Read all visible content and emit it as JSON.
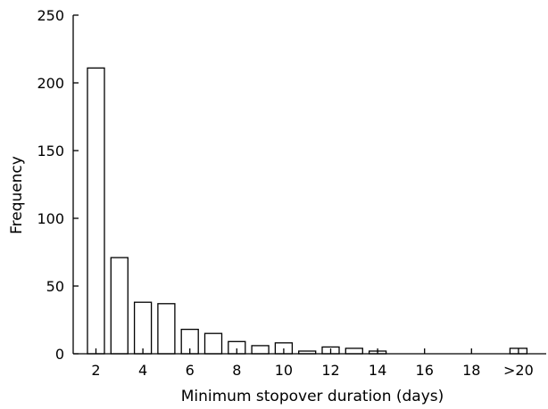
{
  "chart_data": {
    "type": "bar",
    "title": "",
    "xlabel": "Minimum stopover duration (days)",
    "ylabel": "Frequency",
    "ylim": [
      0,
      250
    ],
    "yticks": [
      0,
      50,
      100,
      150,
      200,
      250
    ],
    "ytick_labels": [
      "0",
      "50",
      "100",
      "150",
      "200",
      "250"
    ],
    "categories": [
      "2",
      "3",
      "4",
      "5",
      "6",
      "7",
      "8",
      "9",
      "10",
      "11",
      "12",
      "13",
      "14",
      "15",
      "16",
      "17",
      "18",
      "19",
      ">20"
    ],
    "values": [
      211,
      71,
      38,
      37,
      18,
      15,
      9,
      6,
      8,
      2,
      5,
      4,
      2,
      0,
      0,
      0,
      0,
      0,
      4
    ],
    "xticks": [
      "2",
      "4",
      "6",
      "8",
      "10",
      "12",
      "14",
      "16",
      "18",
      ">20"
    ],
    "grid": false,
    "bar_fill": "#ffffff",
    "bar_stroke": "#000000"
  }
}
